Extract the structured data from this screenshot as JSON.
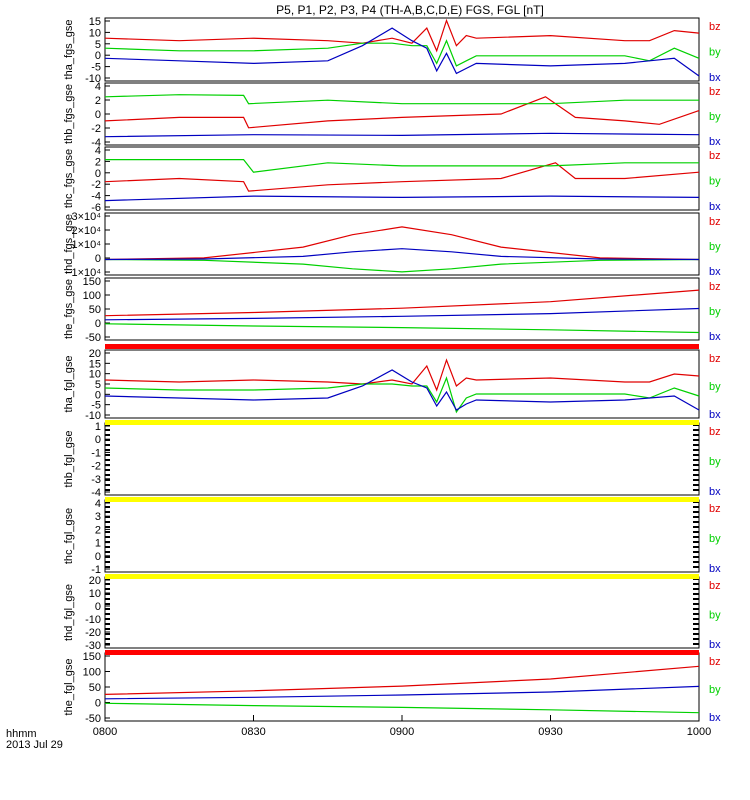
{
  "title": "P5, P1, P2, P3, P4 (TH-A,B,C,D,E) FGS, FGL [nT]",
  "footer": {
    "axis_unit_label": "hhmm",
    "date_label": "2013 Jul 29"
  },
  "legend_labels": [
    "bz",
    "by",
    "bx"
  ],
  "colors": {
    "bz": "#e00000",
    "by": "#00d000",
    "bx": "#0000c0",
    "flag_red": "#ff0000",
    "flag_yellow": "#ffff00"
  },
  "chart_data": {
    "type": "line",
    "x_ticks": [
      "0800",
      "0830",
      "0900",
      "0930",
      "1000"
    ],
    "panels": [
      {
        "ylabel": "tha_fgs_gse",
        "ylim": [
          -10,
          15
        ],
        "y_ticks": [
          "15",
          "10",
          "5",
          "0",
          "-5",
          "-10"
        ],
        "empty": false,
        "series": [
          {
            "name": "bz",
            "x": [
              "0800",
              "0815",
              "0830",
              "0845",
              "0852",
              "0858",
              "0902",
              "0905",
              "0907",
              "0909",
              "0911",
              "0913",
              "0915",
              "0930",
              "0945",
              "0950",
              "0955",
              "1000"
            ],
            "values": [
              7,
              6,
              7,
              6,
              5,
              7,
              5,
              11,
              2,
              14,
              4,
              8,
              7,
              8,
              6,
              6,
              10,
              9
            ]
          },
          {
            "name": "by",
            "x": [
              "0800",
              "0815",
              "0830",
              "0845",
              "0852",
              "0858",
              "0902",
              "0905",
              "0907",
              "0909",
              "0911",
              "0913",
              "0915",
              "0930",
              "0945",
              "0950",
              "0955",
              "1000"
            ],
            "values": [
              3,
              2,
              2,
              3,
              5,
              5,
              4,
              4,
              -3,
              6,
              -4,
              -2,
              0,
              0,
              0,
              -2,
              3,
              -1
            ]
          },
          {
            "name": "bx",
            "x": [
              "0800",
              "0815",
              "0830",
              "0845",
              "0852",
              "0858",
              "0902",
              "0905",
              "0907",
              "0909",
              "0911",
              "0913",
              "0915",
              "0930",
              "0945",
              "0950",
              "0955",
              "1000"
            ],
            "values": [
              -1,
              -2,
              -3,
              -2,
              4,
              11,
              6,
              3,
              -6,
              1,
              -7,
              -5,
              -3,
              -4,
              -3,
              -2,
              -1,
              -8
            ]
          }
        ]
      },
      {
        "ylabel": "thb_fgs_gse",
        "ylim": [
          -5,
          4
        ],
        "y_ticks": [
          "4",
          "2",
          "0",
          "-2",
          "-4"
        ],
        "empty": false,
        "series": [
          {
            "name": "bz",
            "x": [
              "0800",
              "0815",
              "0828",
              "0829",
              "0845",
              "0900",
              "0920",
              "0929",
              "0935",
              "0945",
              "0952",
              "1000"
            ],
            "values": [
              -1.5,
              -1,
              -1,
              -2.5,
              -1.5,
              -1,
              -0.5,
              2,
              -1,
              -1.5,
              -2,
              0
            ]
          },
          {
            "name": "by",
            "x": [
              "0800",
              "0815",
              "0828",
              "0829",
              "0845",
              "0900",
              "0920",
              "0930",
              "0945",
              "1000"
            ],
            "values": [
              2,
              2.3,
              2.2,
              1,
              1.5,
              1,
              1,
              1,
              1.5,
              1.5
            ]
          },
          {
            "name": "bx",
            "x": [
              "0800",
              "0830",
              "0900",
              "0930",
              "1000"
            ],
            "values": [
              -3.8,
              -3.5,
              -3.6,
              -3.3,
              -3.5
            ]
          }
        ]
      },
      {
        "ylabel": "thc_fgs_gse",
        "ylim": [
          -6,
          4
        ],
        "y_ticks": [
          "4",
          "2",
          "0",
          "-2",
          "-4",
          "-6"
        ],
        "empty": false,
        "series": [
          {
            "name": "bz",
            "x": [
              "0800",
              "0815",
              "0828",
              "0829",
              "0845",
              "0900",
              "0920",
              "0931",
              "0935",
              "0945",
              "1000"
            ],
            "values": [
              -1.5,
              -1,
              -1.5,
              -3,
              -2,
              -1.5,
              -1,
              1.5,
              -1,
              -1,
              0
            ]
          },
          {
            "name": "by",
            "x": [
              "0800",
              "0815",
              "0828",
              "0830",
              "0845",
              "0900",
              "0930",
              "0945",
              "1000"
            ],
            "values": [
              2,
              2,
              2,
              0,
              1.5,
              1,
              1,
              1.5,
              1.5
            ]
          },
          {
            "name": "bx",
            "x": [
              "0800",
              "0830",
              "0900",
              "0930",
              "1000"
            ],
            "values": [
              -4.5,
              -3.8,
              -4,
              -3.8,
              -4
            ]
          }
        ]
      },
      {
        "ylabel": "thd_fgs_gse",
        "ylim": [
          -10000,
          30000
        ],
        "y_ticks": [
          "3×10⁴",
          "2×10⁴",
          "1×10⁴",
          "0",
          "−1×10⁴"
        ],
        "empty": false,
        "series": [
          {
            "name": "bz",
            "x": [
              "0800",
              "0820",
              "0840",
              "0850",
              "0900",
              "0910",
              "0920",
              "0940",
              "1000"
            ],
            "values": [
              0,
              1000,
              8000,
              16000,
              21000,
              16000,
              8000,
              1000,
              0
            ]
          },
          {
            "name": "by",
            "x": [
              "0800",
              "0820",
              "0840",
              "0850",
              "0900",
              "0910",
              "0920",
              "0940",
              "1000"
            ],
            "values": [
              0,
              -500,
              -3000,
              -6000,
              -8000,
              -6000,
              -3000,
              -500,
              0
            ]
          },
          {
            "name": "bx",
            "x": [
              "0800",
              "0820",
              "0840",
              "0850",
              "0900",
              "0910",
              "0920",
              "0940",
              "1000"
            ],
            "values": [
              0,
              300,
              2000,
              5000,
              7000,
              5000,
              2000,
              300,
              0
            ]
          }
        ]
      },
      {
        "ylabel": "the_fgs_gse",
        "ylim": [
          -60,
          170
        ],
        "y_ticks": [
          "150",
          "100",
          "50",
          "0",
          "-50"
        ],
        "empty": false,
        "series": [
          {
            "name": "bz",
            "x": [
              "0800",
              "0830",
              "0900",
              "0930",
              "1000"
            ],
            "values": [
              30,
              42,
              58,
              82,
              125
            ]
          },
          {
            "name": "by",
            "x": [
              "0800",
              "0830",
              "0900",
              "0930",
              "1000"
            ],
            "values": [
              0,
              -8,
              -14,
              -22,
              -32
            ]
          },
          {
            "name": "bx",
            "x": [
              "0800",
              "0830",
              "0900",
              "0930",
              "1000"
            ],
            "values": [
              15,
              20,
              28,
              38,
              57
            ]
          }
        ]
      },
      {
        "ylabel": "tha_fgl_gse",
        "ylim": [
          -12,
          22
        ],
        "y_ticks": [
          "20",
          "15",
          "10",
          "5",
          "0",
          "-5",
          "-10"
        ],
        "empty": false,
        "series": [
          {
            "name": "bz",
            "x": [
              "0800",
              "0815",
              "0830",
              "0845",
              "0852",
              "0858",
              "0902",
              "0905",
              "0907",
              "0909",
              "0911",
              "0913",
              "0915",
              "0930",
              "0945",
              "0950",
              "0955",
              "1000"
            ],
            "values": [
              7,
              6,
              7,
              6,
              5,
              7,
              5,
              14,
              2,
              17,
              4,
              8,
              7,
              8,
              6,
              6,
              10,
              9
            ]
          },
          {
            "name": "by",
            "x": [
              "0800",
              "0815",
              "0830",
              "0845",
              "0852",
              "0858",
              "0902",
              "0905",
              "0907",
              "0909",
              "0911",
              "0913",
              "0915",
              "0930",
              "0945",
              "0950",
              "0955",
              "1000"
            ],
            "values": [
              3,
              2,
              2,
              3,
              5,
              5,
              4,
              4,
              -4,
              8,
              -9,
              -2,
              0,
              0,
              0,
              -2,
              3,
              -1
            ]
          },
          {
            "name": "bx",
            "x": [
              "0800",
              "0815",
              "0830",
              "0845",
              "0852",
              "0858",
              "0902",
              "0905",
              "0907",
              "0909",
              "0911",
              "0913",
              "0915",
              "0930",
              "0945",
              "0950",
              "0955",
              "1000"
            ],
            "values": [
              -1,
              -2,
              -3,
              -2,
              4,
              12,
              6,
              3,
              -6,
              1,
              -8,
              -5,
              -3,
              -4,
              -3,
              -2,
              -1,
              -8
            ]
          }
        ]
      },
      {
        "ylabel": "thb_fgl_gse",
        "ylim": [
          -4.5,
          1.5
        ],
        "y_ticks": [
          "1",
          "0",
          "-1",
          "-2",
          "-3",
          "-4"
        ],
        "empty": true,
        "series": []
      },
      {
        "ylabel": "thc_fgl_gse",
        "ylim": [
          -1.5,
          4.5
        ],
        "y_ticks": [
          "4",
          "3",
          "2",
          "1",
          "0",
          "-1"
        ],
        "empty": true,
        "series": []
      },
      {
        "ylabel": "thd_fgl_gse",
        "ylim": [
          -35,
          25
        ],
        "y_ticks": [
          "20",
          "10",
          "0",
          "-10",
          "-20",
          "-30"
        ],
        "empty": true,
        "series": []
      },
      {
        "ylabel": "the_fgl_gse",
        "ylim": [
          -60,
          170
        ],
        "y_ticks": [
          "150",
          "100",
          "50",
          "0",
          "-50"
        ],
        "empty": false,
        "series": [
          {
            "name": "bz",
            "x": [
              "0800",
              "0830",
              "0900",
              "0930",
              "1000"
            ],
            "values": [
              30,
              42,
              58,
              82,
              125
            ]
          },
          {
            "name": "by",
            "x": [
              "0800",
              "0830",
              "0900",
              "0930",
              "1000"
            ],
            "values": [
              0,
              -8,
              -14,
              -22,
              -32
            ]
          },
          {
            "name": "bx",
            "x": [
              "0800",
              "0830",
              "0900",
              "0930",
              "1000"
            ],
            "values": [
              15,
              20,
              28,
              38,
              57
            ]
          }
        ]
      }
    ],
    "flag_bars": [
      {
        "after_panel": 4,
        "color": "flag_red"
      },
      {
        "after_panel": 5,
        "color": "flag_yellow"
      },
      {
        "after_panel": 6,
        "color": "flag_yellow"
      },
      {
        "after_panel": 7,
        "color": "flag_yellow"
      },
      {
        "after_panel": 8,
        "color": "flag_red"
      }
    ],
    "grid": false,
    "legend_position": "right of each panel"
  }
}
